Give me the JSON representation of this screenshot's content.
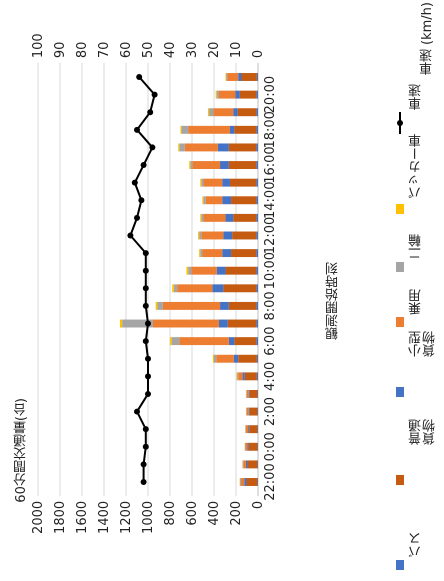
{
  "chart_data": {
    "type": "bar",
    "stacked": true,
    "orientation": "horizontal",
    "title": "",
    "xlabel": "観測開始時刻",
    "ylabel_left": "60分間交通量(台)",
    "ylabel_right": "車速 (km/h)",
    "categories": [
      "22:00",
      "23:00",
      "0:00",
      "1:00",
      "2:00",
      "3:00",
      "4:00",
      "5:00",
      "6:00",
      "7:00",
      "8:00",
      "9:00",
      "10:00",
      "11:00",
      "12:00",
      "13:00",
      "14:00",
      "15:00",
      "16:00",
      "17:00",
      "18:00",
      "19:00",
      "20:00",
      "21:00"
    ],
    "tick_labels": [
      "22:00",
      "0:00",
      "2:00",
      "4:00",
      "6:00",
      "8:00",
      "10:00",
      "12:00",
      "14:00",
      "16:00",
      "18:00",
      "20:00"
    ],
    "volume_axis": {
      "min": 0,
      "max": 2000,
      "step": 200
    },
    "speed_axis": {
      "min": 0,
      "max": 100,
      "step": 10
    },
    "series": [
      {
        "name": "バス",
        "color": "#4472C4",
        "values": [
          5,
          5,
          5,
          5,
          5,
          5,
          10,
          10,
          15,
          15,
          15,
          15,
          15,
          15,
          15,
          15,
          15,
          15,
          15,
          15,
          15,
          15,
          15,
          10
        ]
      },
      {
        "name": "普通\n貨物",
        "color": "#C55A11",
        "values": [
          100,
          90,
          80,
          75,
          70,
          70,
          110,
          170,
          200,
          260,
          250,
          300,
          280,
          230,
          220,
          210,
          230,
          240,
          250,
          250,
          200,
          170,
          150,
          140
        ]
      },
      {
        "name": "小型\n貨物",
        "color": "#4472C4",
        "values": [
          20,
          15,
          10,
          10,
          8,
          8,
          20,
          40,
          50,
          80,
          80,
          100,
          80,
          80,
          80,
          70,
          80,
          70,
          80,
          100,
          40,
          40,
          40,
          30
        ]
      },
      {
        "name": "乗用",
        "color": "#ED7D31",
        "values": [
          30,
          25,
          20,
          20,
          20,
          20,
          40,
          160,
          450,
          600,
          520,
          320,
          230,
          180,
          200,
          200,
          150,
          170,
          250,
          300,
          380,
          180,
          150,
          100
        ]
      },
      {
        "name": "二輪",
        "color": "#A5A5A5",
        "values": [
          10,
          5,
          5,
          5,
          5,
          5,
          10,
          20,
          70,
          280,
          50,
          30,
          30,
          20,
          20,
          20,
          20,
          20,
          20,
          50,
          60,
          40,
          20,
          10
        ]
      },
      {
        "name": "パッカー車",
        "color": "#FFC000",
        "values": [
          2,
          2,
          2,
          2,
          2,
          2,
          5,
          10,
          15,
          20,
          15,
          15,
          15,
          10,
          10,
          10,
          10,
          10,
          10,
          10,
          10,
          10,
          10,
          5
        ]
      }
    ],
    "speed_series": {
      "name": "車速",
      "color": "#000000",
      "values": [
        52,
        52,
        51,
        51,
        55,
        50,
        50,
        50,
        51,
        50,
        51,
        51,
        51,
        51,
        58,
        55,
        53,
        56,
        52,
        48,
        55,
        49,
        47,
        54
      ]
    }
  }
}
